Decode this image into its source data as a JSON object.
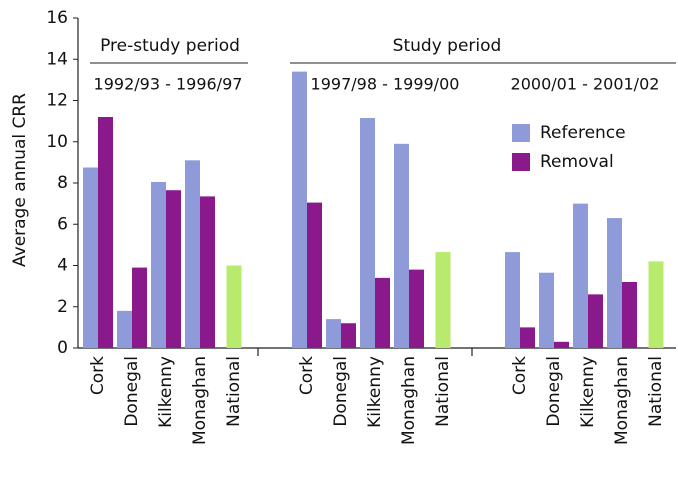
{
  "chart_data": {
    "type": "bar",
    "y_label": "Average annual CRR",
    "ylim": [
      0,
      16
    ],
    "yticks": [
      0,
      2,
      4,
      6,
      8,
      10,
      12,
      14,
      16
    ],
    "periods": [
      "Pre-study period",
      "Study period"
    ],
    "groups": [
      "1992/93 - 1996/97",
      "1997/98 - 1999/00",
      "2000/01 - 2001/02"
    ],
    "categories": [
      "Cork",
      "Donegal",
      "Kilkenny",
      "Monaghan",
      "National"
    ],
    "series": [
      {
        "name": "Reference",
        "color": "#8f9bd8",
        "values": [
          [
            8.75,
            1.8,
            8.05,
            9.1
          ],
          [
            13.4,
            1.4,
            11.15,
            9.9
          ],
          [
            4.65,
            3.65,
            7.0,
            6.3
          ]
        ]
      },
      {
        "name": "Removal",
        "color": "#8a1a8c",
        "values": [
          [
            11.2,
            3.9,
            7.65,
            7.35
          ],
          [
            7.05,
            1.2,
            3.4,
            3.8
          ],
          [
            1.0,
            0.3,
            2.6,
            3.2
          ]
        ]
      }
    ],
    "national": {
      "color": "#b8ea6e",
      "values": [
        4.0,
        4.65,
        4.2
      ]
    }
  }
}
